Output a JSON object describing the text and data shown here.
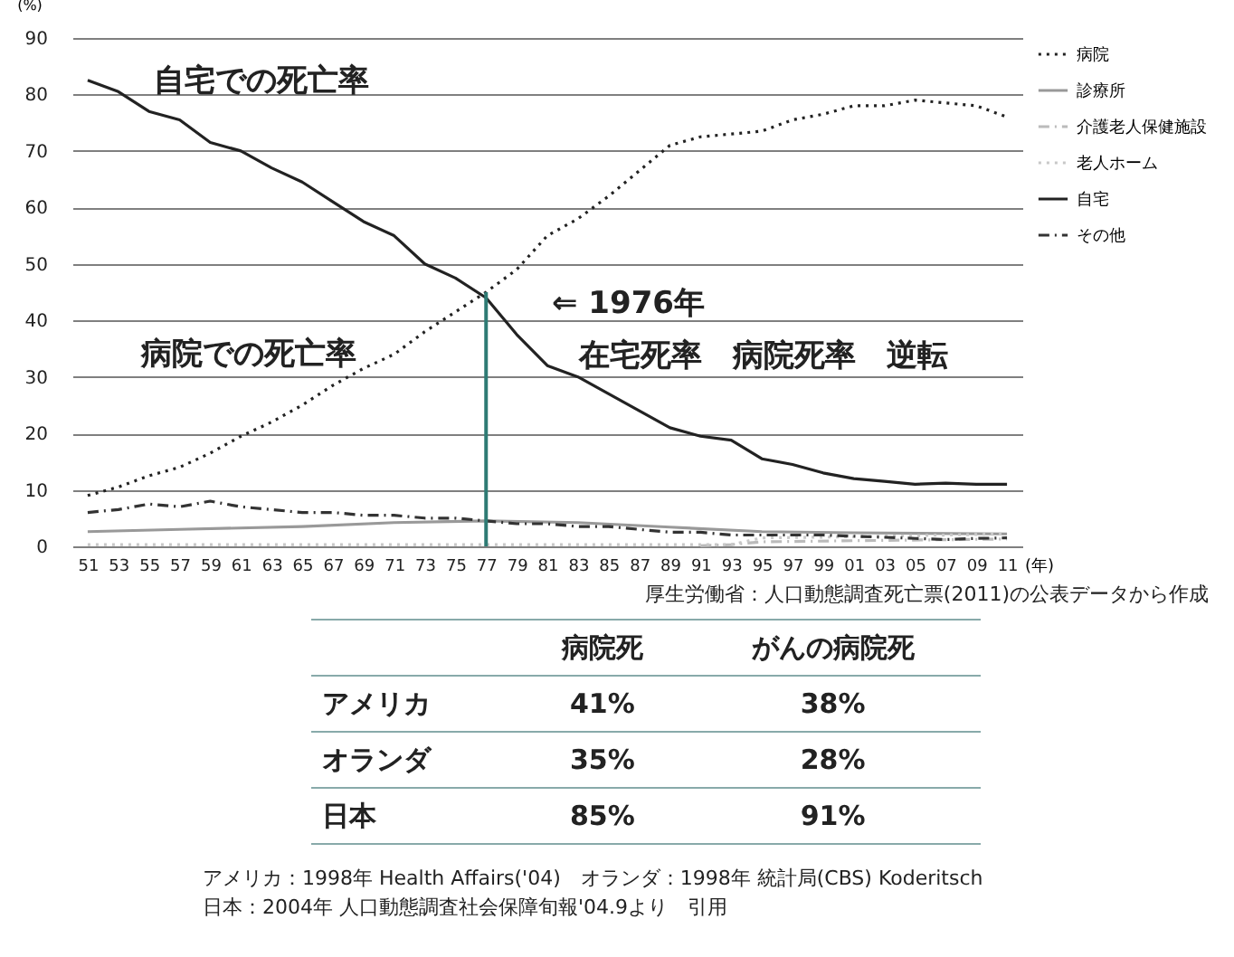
{
  "chart_data": [
    {
      "type": "line",
      "ylabel": "(%)",
      "xlabel": "(年)",
      "x": [
        1951,
        1953,
        1955,
        1957,
        1959,
        1961,
        1963,
        1965,
        1967,
        1969,
        1971,
        1973,
        1975,
        1977,
        1979,
        1981,
        1983,
        1985,
        1987,
        1989,
        1991,
        1993,
        1995,
        1997,
        1999,
        2001,
        2003,
        2005,
        2007,
        2009,
        2011
      ],
      "series": [
        {
          "name": "病院",
          "color": "#222222",
          "line_style": "dotted",
          "values": [
            9,
            10.5,
            12.5,
            14,
            16.5,
            19.5,
            22,
            25,
            28.5,
            31.5,
            34,
            38,
            41.5,
            45,
            49,
            55,
            58,
            62,
            66.5,
            71,
            72.5,
            73,
            73.5,
            75.5,
            76.5,
            78,
            78,
            79,
            78.5,
            78,
            76
          ]
        },
        {
          "name": "診療所",
          "color": "#999999",
          "line_style": "solid",
          "x": [
            1951,
            1957,
            1965,
            1971,
            1977,
            1983,
            1989,
            1995,
            2001,
            2011
          ],
          "values": [
            2.6,
            3,
            3.5,
            4.2,
            4.5,
            4.2,
            3.4,
            2.6,
            2.4,
            2.2
          ]
        },
        {
          "name": "介護老人保健施設",
          "color": "#bbbbbb",
          "line_style": "dashed",
          "x": [
            1991,
            1993,
            1995,
            2001,
            2011
          ],
          "values": [
            0.1,
            0.3,
            0.8,
            1,
            1.3
          ]
        },
        {
          "name": "老人ホーム",
          "color": "#c8c8c8",
          "line_style": "dotted",
          "x": [
            1951,
            1993,
            1995,
            2001,
            2011
          ],
          "values": [
            0.3,
            0.3,
            1.5,
            1.7,
            2.2
          ]
        },
        {
          "name": "自宅",
          "color": "#222222",
          "line_style": "solid",
          "values": [
            82.5,
            80.5,
            77,
            75.5,
            71.5,
            70,
            67,
            64.5,
            61,
            57.5,
            55,
            50,
            47.5,
            44,
            37.5,
            32,
            30,
            27,
            24,
            21,
            19.5,
            18.8,
            15.5,
            14.5,
            13,
            12,
            11.5,
            11,
            11.2,
            11,
            11
          ]
        },
        {
          "name": "その他",
          "color": "#333333",
          "line_style": "dashed",
          "values": [
            6,
            6.5,
            7.5,
            7,
            8,
            7,
            6.5,
            6,
            6,
            5.5,
            5.5,
            5,
            5,
            4.5,
            4,
            4,
            3.5,
            3.5,
            3,
            2.5,
            2.5,
            2,
            2,
            2,
            2,
            1.8,
            1.6,
            1.4,
            1.2,
            1.4,
            1.5
          ]
        }
      ],
      "xlim": [
        1950,
        2012
      ],
      "xticks": [
        {
          "value": 1951,
          "label": "51"
        },
        {
          "value": 1953,
          "label": "53"
        },
        {
          "value": 1955,
          "label": "55"
        },
        {
          "value": 1957,
          "label": "57"
        },
        {
          "value": 1959,
          "label": "59"
        },
        {
          "value": 1961,
          "label": "61"
        },
        {
          "value": 1963,
          "label": "63"
        },
        {
          "value": 1965,
          "label": "65"
        },
        {
          "value": 1967,
          "label": "67"
        },
        {
          "value": 1969,
          "label": "69"
        },
        {
          "value": 1971,
          "label": "71"
        },
        {
          "value": 1973,
          "label": "73"
        },
        {
          "value": 1975,
          "label": "75"
        },
        {
          "value": 1977,
          "label": "77"
        },
        {
          "value": 1979,
          "label": "79"
        },
        {
          "value": 1981,
          "label": "81"
        },
        {
          "value": 1983,
          "label": "83"
        },
        {
          "value": 1985,
          "label": "85"
        },
        {
          "value": 1987,
          "label": "87"
        },
        {
          "value": 1989,
          "label": "89"
        },
        {
          "value": 1991,
          "label": "91"
        },
        {
          "value": 1993,
          "label": "93"
        },
        {
          "value": 1995,
          "label": "95"
        },
        {
          "value": 1997,
          "label": "97"
        },
        {
          "value": 1999,
          "label": "99"
        },
        {
          "value": 2001,
          "label": "01"
        },
        {
          "value": 2003,
          "label": "03"
        },
        {
          "value": 2005,
          "label": "05"
        },
        {
          "value": 2007,
          "label": "07"
        },
        {
          "value": 2009,
          "label": "09"
        },
        {
          "value": 2011,
          "label": "11"
        }
      ],
      "ylim": [
        0,
        90
      ],
      "yticks": [
        0,
        10,
        20,
        30,
        40,
        50,
        60,
        70,
        80,
        90
      ],
      "grid": "y",
      "legend": "right",
      "ref_lines": [
        {
          "axis": "x",
          "value": 1977,
          "color": "#2e7b74"
        }
      ],
      "annotations": [
        "自宅での死亡率",
        "病院での死亡率",
        "⇐ 1976年",
        "在宅死率　病院死率　逆転",
        "厚生労働省：人口動態調査死亡票(2011)の公表データから作成"
      ]
    },
    {
      "type": "other",
      "annotations": [
        "病院死",
        "がんの病院死",
        "アメリカ",
        "41%",
        "38%",
        "オランダ",
        "35%",
        "28%",
        "日本",
        "85%",
        "91%",
        "アメリカ：1998年 Health Affairs('04)　オランダ：1998年 統計局(CBS) Koderitsch",
        "日本：2004年 人口動態調査社会保障旬報'04.9より　引用"
      ]
    }
  ]
}
